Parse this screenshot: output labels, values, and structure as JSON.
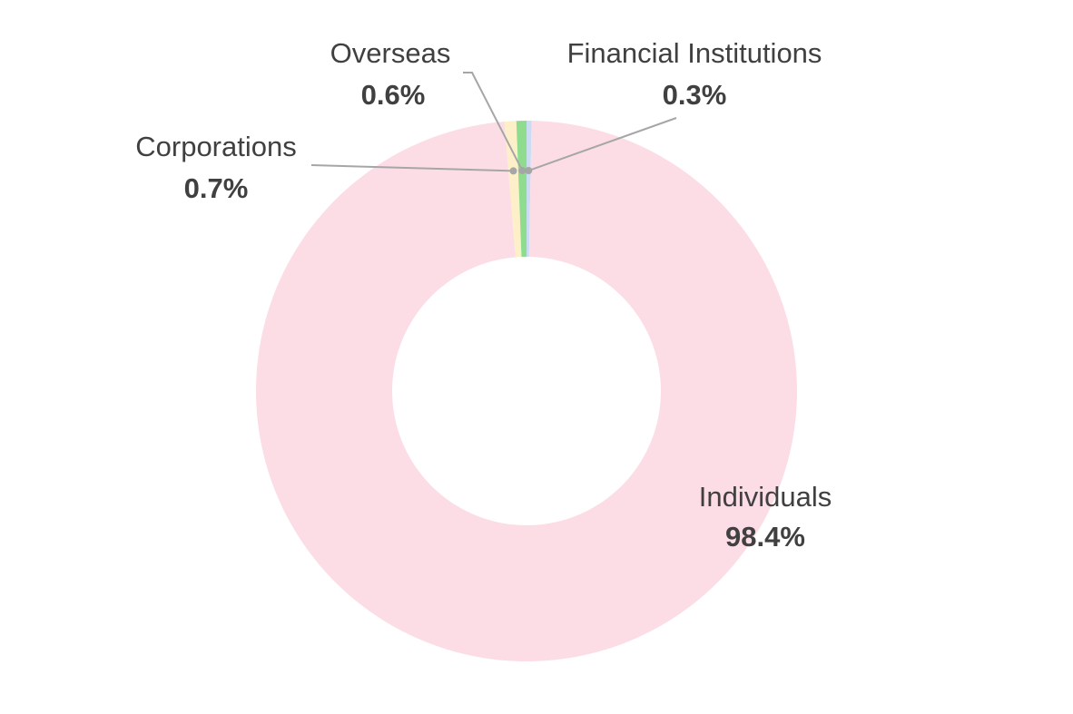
{
  "chart_data": {
    "type": "pie",
    "donut": true,
    "title": "",
    "legend": "none",
    "unit": "%",
    "slices": [
      {
        "label": "Financial Institutions",
        "value": 0.3,
        "display": "0.3%",
        "color": "#c9dcf2"
      },
      {
        "label": "Individuals",
        "value": 98.4,
        "display": "98.4%",
        "color": "#fcdde5"
      },
      {
        "label": "Corporations",
        "value": 0.7,
        "display": "0.7%",
        "color": "#fdf0c8"
      },
      {
        "label": "Overseas",
        "value": 0.6,
        "display": "0.6%",
        "color": "#8fdc8f"
      }
    ]
  }
}
